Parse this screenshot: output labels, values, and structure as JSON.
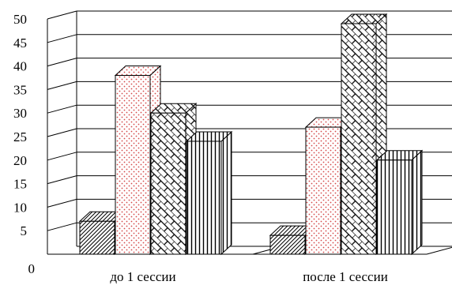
{
  "chart_data": {
    "type": "bar",
    "title": "",
    "xlabel": "",
    "ylabel": "",
    "categories": [
      "до 1 сессии",
      "после 1 сессии"
    ],
    "series": [
      {
        "values": [
          7,
          4
        ],
        "pattern": "diagonal-hatch"
      },
      {
        "values": [
          38,
          27
        ],
        "pattern": "dots"
      },
      {
        "values": [
          30,
          49
        ],
        "pattern": "crosshatch"
      },
      {
        "values": [
          24,
          20
        ],
        "pattern": "vertical-lines"
      }
    ],
    "ylim": [
      0,
      50
    ],
    "yticks": [
      0,
      5,
      10,
      15,
      20,
      25,
      30,
      35,
      40,
      45,
      50
    ],
    "grid": true,
    "style": "3d"
  }
}
